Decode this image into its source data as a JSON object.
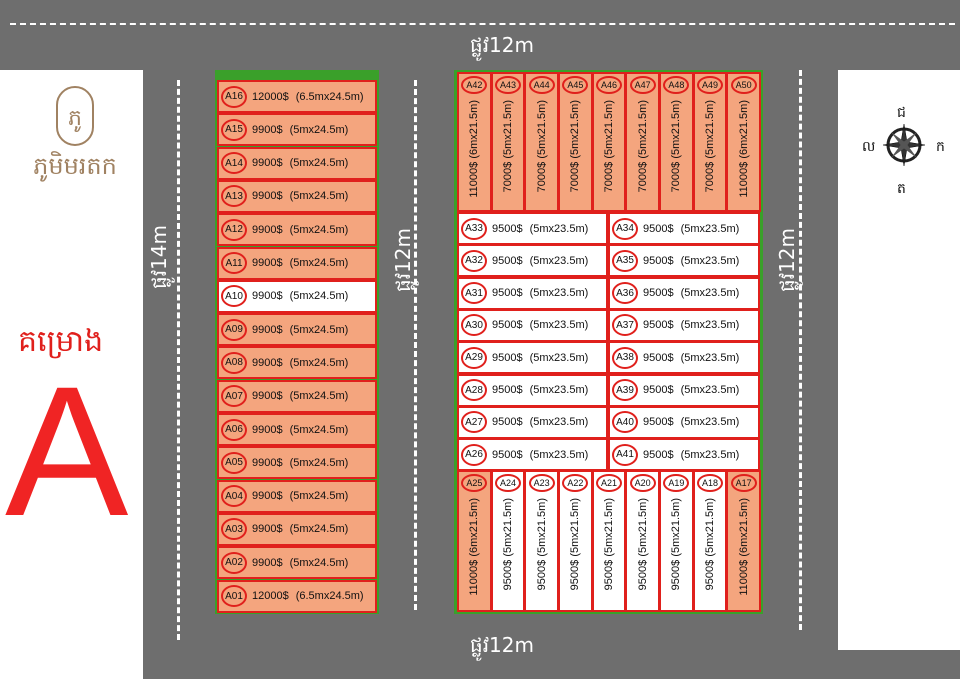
{
  "logo": {
    "text": "ភូមិមរតក",
    "mark": "ភូ"
  },
  "project": {
    "label": "គម្រោង",
    "letter": "A"
  },
  "roads": {
    "top": "ផ្លូវ12m",
    "bottom": "ផ្លូវ12m",
    "left": "ផ្លូវ14m",
    "middle": "ផ្លូវ12m",
    "right": "ផ្លូវ12m"
  },
  "compass": {
    "north": "ជ",
    "south": "ត",
    "east": "ក",
    "west": "ល"
  },
  "colors": {
    "road": "#6e6e6e",
    "sold_or_highlight": "#f4a57e",
    "border": "#e0201c",
    "block_edge": "#3aa02a"
  },
  "left_block": [
    {
      "id": "A16",
      "price": "12000$",
      "size": "(6.5mx24.5m)",
      "orange": true
    },
    {
      "id": "A15",
      "price": "9900$",
      "size": "(5mx24.5m)",
      "orange": true
    },
    {
      "id": "A14",
      "price": "9900$",
      "size": "(5mx24.5m)",
      "orange": true
    },
    {
      "id": "A13",
      "price": "9900$",
      "size": "(5mx24.5m)",
      "orange": true
    },
    {
      "id": "A12",
      "price": "9900$",
      "size": "(5mx24.5m)",
      "orange": true
    },
    {
      "id": "A11",
      "price": "9900$",
      "size": "(5mx24.5m)",
      "orange": true
    },
    {
      "id": "A10",
      "price": "9900$",
      "size": "(5mx24.5m)",
      "orange": false
    },
    {
      "id": "A09",
      "price": "9900$",
      "size": "(5mx24.5m)",
      "orange": true
    },
    {
      "id": "A08",
      "price": "9900$",
      "size": "(5mx24.5m)",
      "orange": true
    },
    {
      "id": "A07",
      "price": "9900$",
      "size": "(5mx24.5m)",
      "orange": true
    },
    {
      "id": "A06",
      "price": "9900$",
      "size": "(5mx24.5m)",
      "orange": true
    },
    {
      "id": "A05",
      "price": "9900$",
      "size": "(5mx24.5m)",
      "orange": true
    },
    {
      "id": "A04",
      "price": "9900$",
      "size": "(5mx24.5m)",
      "orange": true
    },
    {
      "id": "A03",
      "price": "9900$",
      "size": "(5mx24.5m)",
      "orange": true
    },
    {
      "id": "A02",
      "price": "9900$",
      "size": "(5mx24.5m)",
      "orange": true
    },
    {
      "id": "A01",
      "price": "12000$",
      "size": "(6.5mx24.5m)",
      "orange": true
    }
  ],
  "right_top": [
    {
      "id": "A42",
      "price": "11000$",
      "size": "(6mx21.5m)",
      "orange": true
    },
    {
      "id": "A43",
      "price": "7000$",
      "size": "(5mx21.5m)",
      "orange": true
    },
    {
      "id": "A44",
      "price": "7000$",
      "size": "(5mx21.5m)",
      "orange": true
    },
    {
      "id": "A45",
      "price": "7000$",
      "size": "(5mx21.5m)",
      "orange": true
    },
    {
      "id": "A46",
      "price": "7000$",
      "size": "(5mx21.5m)",
      "orange": true
    },
    {
      "id": "A47",
      "price": "7000$",
      "size": "(5mx21.5m)",
      "orange": true
    },
    {
      "id": "A48",
      "price": "7000$",
      "size": "(5mx21.5m)",
      "orange": true
    },
    {
      "id": "A49",
      "price": "7000$",
      "size": "(5mx21.5m)",
      "orange": true
    },
    {
      "id": "A50",
      "price": "11000$",
      "size": "(6mx21.5m)",
      "orange": true
    }
  ],
  "right_middle_left": [
    "A33",
    "A32",
    "A31",
    "A30",
    "A29",
    "A28",
    "A27",
    "A26"
  ],
  "right_middle_right": [
    "A34",
    "A35",
    "A36",
    "A37",
    "A38",
    "A39",
    "A40",
    "A41"
  ],
  "right_middle_price": "9500$",
  "right_middle_size": "(5mx23.5m)",
  "right_bottom": [
    {
      "id": "A25",
      "price": "11000$",
      "size": "(6mx21.5m)",
      "orange": true
    },
    {
      "id": "A24",
      "price": "9500$",
      "size": "(5mx21.5m)",
      "orange": false
    },
    {
      "id": "A23",
      "price": "9500$",
      "size": "(5mx21.5m)",
      "orange": false
    },
    {
      "id": "A22",
      "price": "9500$",
      "size": "(5mx21.5m)",
      "orange": false
    },
    {
      "id": "A21",
      "price": "9500$",
      "size": "(5mx21.5m)",
      "orange": false
    },
    {
      "id": "A20",
      "price": "9500$",
      "size": "(5mx21.5m)",
      "orange": false
    },
    {
      "id": "A19",
      "price": "9500$",
      "size": "(5mx21.5m)",
      "orange": false
    },
    {
      "id": "A18",
      "price": "9500$",
      "size": "(5mx21.5m)",
      "orange": false
    },
    {
      "id": "A17",
      "price": "11000$",
      "size": "(6mx21.5m)",
      "orange": true
    }
  ]
}
